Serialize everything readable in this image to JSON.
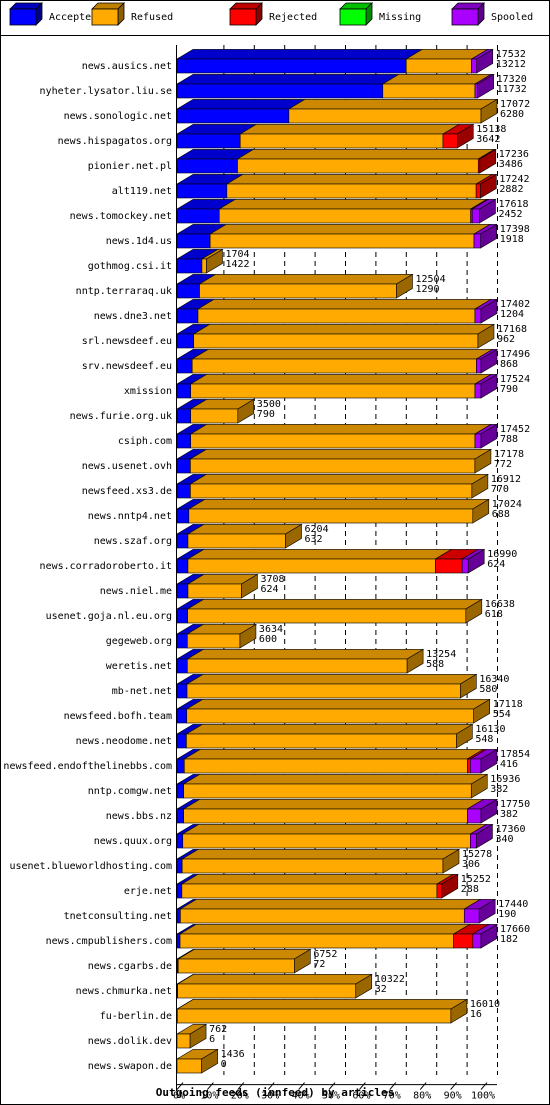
{
  "chart_data": {
    "type": "bar",
    "orientation": "horizontal",
    "stacked": true,
    "percent_scale": true,
    "xlabel": "Outgoing feeds (innfeed) by articles",
    "xlim": [
      0,
      100
    ],
    "x_ticks": [
      "0%",
      "10%",
      "20%",
      "30%",
      "40%",
      "50%",
      "60%",
      "70%",
      "80%",
      "90%",
      "100%"
    ],
    "grid": true,
    "legend_position": "top",
    "legend": [
      {
        "name": "Accepted",
        "color": "#0000ff"
      },
      {
        "name": "Refused",
        "color": "#ffaa00"
      },
      {
        "name": "Rejected",
        "color": "#ff0000"
      },
      {
        "name": "Missing",
        "color": "#00ff00"
      },
      {
        "name": "Spooled",
        "color": "#aa00ff"
      }
    ],
    "rows": [
      {
        "name": "news.ausics.net",
        "total": "17532",
        "accepted": "13212",
        "p": [
          75.4,
          21.5,
          0,
          0,
          1.7
        ]
      },
      {
        "name": "nyheter.lysator.liu.se",
        "total": "17320",
        "accepted": "11732",
        "p": [
          67.7,
          30.3,
          0,
          0,
          0.9
        ]
      },
      {
        "name": "news.sonologic.net",
        "total": "17072",
        "accepted": "6280",
        "p": [
          36.8,
          63.2,
          0,
          0,
          0
        ]
      },
      {
        "name": "news.hispagatos.org",
        "total": "15138",
        "accepted": "3642",
        "p": [
          20.8,
          66.7,
          4.7,
          0,
          0
        ]
      },
      {
        "name": "pionier.net.pl",
        "total": "17236",
        "accepted": "3486",
        "p": [
          19.9,
          79.2,
          0.5,
          0,
          0
        ]
      },
      {
        "name": "alt119.net",
        "total": "17242",
        "accepted": "2882",
        "p": [
          16.4,
          82.0,
          1.4,
          0,
          0
        ]
      },
      {
        "name": "news.tomockey.net",
        "total": "17618",
        "accepted": "2452",
        "p": [
          13.9,
          82.7,
          0.5,
          0,
          2.4
        ]
      },
      {
        "name": "news.1d4.us",
        "total": "17398",
        "accepted": "1918",
        "p": [
          10.9,
          86.8,
          0,
          0,
          2.2
        ]
      },
      {
        "name": "gothmog.csi.it",
        "total": "1704",
        "accepted": "1422",
        "p": [
          8.2,
          1.5,
          0,
          0,
          0
        ]
      },
      {
        "name": "nntp.terraraq.uk",
        "total": "12504",
        "accepted": "1290",
        "p": [
          7.4,
          64.8,
          0,
          0,
          0
        ]
      },
      {
        "name": "news.dne3.net",
        "total": "17402",
        "accepted": "1204",
        "p": [
          6.9,
          91.1,
          0,
          0,
          2.0
        ]
      },
      {
        "name": "srl.newsdeef.eu",
        "total": "17168",
        "accepted": "962",
        "p": [
          5.5,
          93.5,
          0,
          0,
          0
        ]
      },
      {
        "name": "srv.newsdeef.eu",
        "total": "17496",
        "accepted": "868",
        "p": [
          5.0,
          93.5,
          0,
          0,
          1.5
        ]
      },
      {
        "name": "xmission",
        "total": "17524",
        "accepted": "790",
        "p": [
          4.5,
          93.5,
          0,
          0,
          2.0
        ]
      },
      {
        "name": "news.furie.org.uk",
        "total": "3500",
        "accepted": "790",
        "p": [
          4.5,
          15.5,
          0,
          0,
          0
        ]
      },
      {
        "name": "csiph.com",
        "total": "17452",
        "accepted": "788",
        "p": [
          4.5,
          93.5,
          0,
          0,
          2.0
        ]
      },
      {
        "name": "news.usenet.ovh",
        "total": "17178",
        "accepted": "772",
        "p": [
          4.4,
          93.6,
          0,
          0,
          0
        ]
      },
      {
        "name": "newsfeed.xs3.de",
        "total": "16912",
        "accepted": "770",
        "p": [
          4.4,
          92.6,
          0,
          0,
          0
        ]
      },
      {
        "name": "news.nntp4.net",
        "total": "17024",
        "accepted": "688",
        "p": [
          3.9,
          93.4,
          0,
          0,
          0
        ]
      },
      {
        "name": "news.szaf.org",
        "total": "6204",
        "accepted": "632",
        "p": [
          3.6,
          32.1,
          0,
          0,
          0
        ]
      },
      {
        "name": "news.corradoroberto.it",
        "total": "16990",
        "accepted": "624",
        "p": [
          3.6,
          81.4,
          8.8,
          0,
          2.0
        ]
      },
      {
        "name": "news.niel.me",
        "total": "3708",
        "accepted": "624",
        "p": [
          3.6,
          17.6,
          0,
          0,
          0
        ]
      },
      {
        "name": "usenet.goja.nl.eu.org",
        "total": "16638",
        "accepted": "618",
        "p": [
          3.5,
          91.5,
          0,
          0,
          0
        ]
      },
      {
        "name": "gegeweb.org",
        "total": "3634",
        "accepted": "600",
        "p": [
          3.4,
          17.3,
          0,
          0,
          0
        ]
      },
      {
        "name": "weretis.net",
        "total": "13254",
        "accepted": "588",
        "p": [
          3.4,
          72.3,
          0,
          0,
          0
        ]
      },
      {
        "name": "mb-net.net",
        "total": "16340",
        "accepted": "580",
        "p": [
          3.3,
          89.9,
          0,
          0,
          0
        ]
      },
      {
        "name": "newsfeed.bofh.team",
        "total": "17118",
        "accepted": "554",
        "p": [
          3.2,
          94.4,
          0,
          0,
          0
        ]
      },
      {
        "name": "news.neodome.net",
        "total": "16130",
        "accepted": "548",
        "p": [
          3.1,
          88.8,
          0,
          0,
          0
        ]
      },
      {
        "name": "newsfeed.endofthelinebbs.com",
        "total": "17854",
        "accepted": "416",
        "p": [
          2.4,
          93.1,
          1.0,
          0,
          3.5
        ]
      },
      {
        "name": "nntp.comgw.net",
        "total": "16936",
        "accepted": "382",
        "p": [
          2.2,
          94.6,
          0,
          0,
          0
        ]
      },
      {
        "name": "news.bbs.nz",
        "total": "17750",
        "accepted": "382",
        "p": [
          2.2,
          93.3,
          0,
          0,
          4.5
        ]
      },
      {
        "name": "news.quux.org",
        "total": "17360",
        "accepted": "340",
        "p": [
          1.9,
          94.6,
          0,
          0,
          2.0
        ]
      },
      {
        "name": "usenet.blueworldhosting.com",
        "total": "15278",
        "accepted": "306",
        "p": [
          1.7,
          85.8,
          0,
          0,
          0
        ]
      },
      {
        "name": "erje.net",
        "total": "15252",
        "accepted": "288",
        "p": [
          1.6,
          83.9,
          1.6,
          0,
          0
        ]
      },
      {
        "name": "tnetconsulting.net",
        "total": "17440",
        "accepted": "190",
        "p": [
          1.1,
          93.4,
          0,
          0,
          4.9
        ]
      },
      {
        "name": "news.cmpublishers.com",
        "total": "17660",
        "accepted": "182",
        "p": [
          1.0,
          90.0,
          6.3,
          0,
          2.7
        ]
      },
      {
        "name": "news.cgarbs.de",
        "total": "6752",
        "accepted": "72",
        "p": [
          0.4,
          38.2,
          0,
          0,
          0
        ]
      },
      {
        "name": "news.chmurka.net",
        "total": "10322",
        "accepted": "32",
        "p": [
          0.2,
          58.6,
          0,
          0,
          0
        ]
      },
      {
        "name": "fu-berlin.de",
        "total": "16010",
        "accepted": "16",
        "p": [
          0.1,
          90.0,
          0,
          0,
          0
        ]
      },
      {
        "name": "news.dolik.dev",
        "total": "762",
        "accepted": "6",
        "p": [
          0.0,
          4.3,
          0,
          0,
          0
        ]
      },
      {
        "name": "news.swapon.de",
        "total": "1436",
        "accepted": "0",
        "p": [
          0.0,
          8.1,
          0,
          0,
          0
        ]
      }
    ]
  }
}
